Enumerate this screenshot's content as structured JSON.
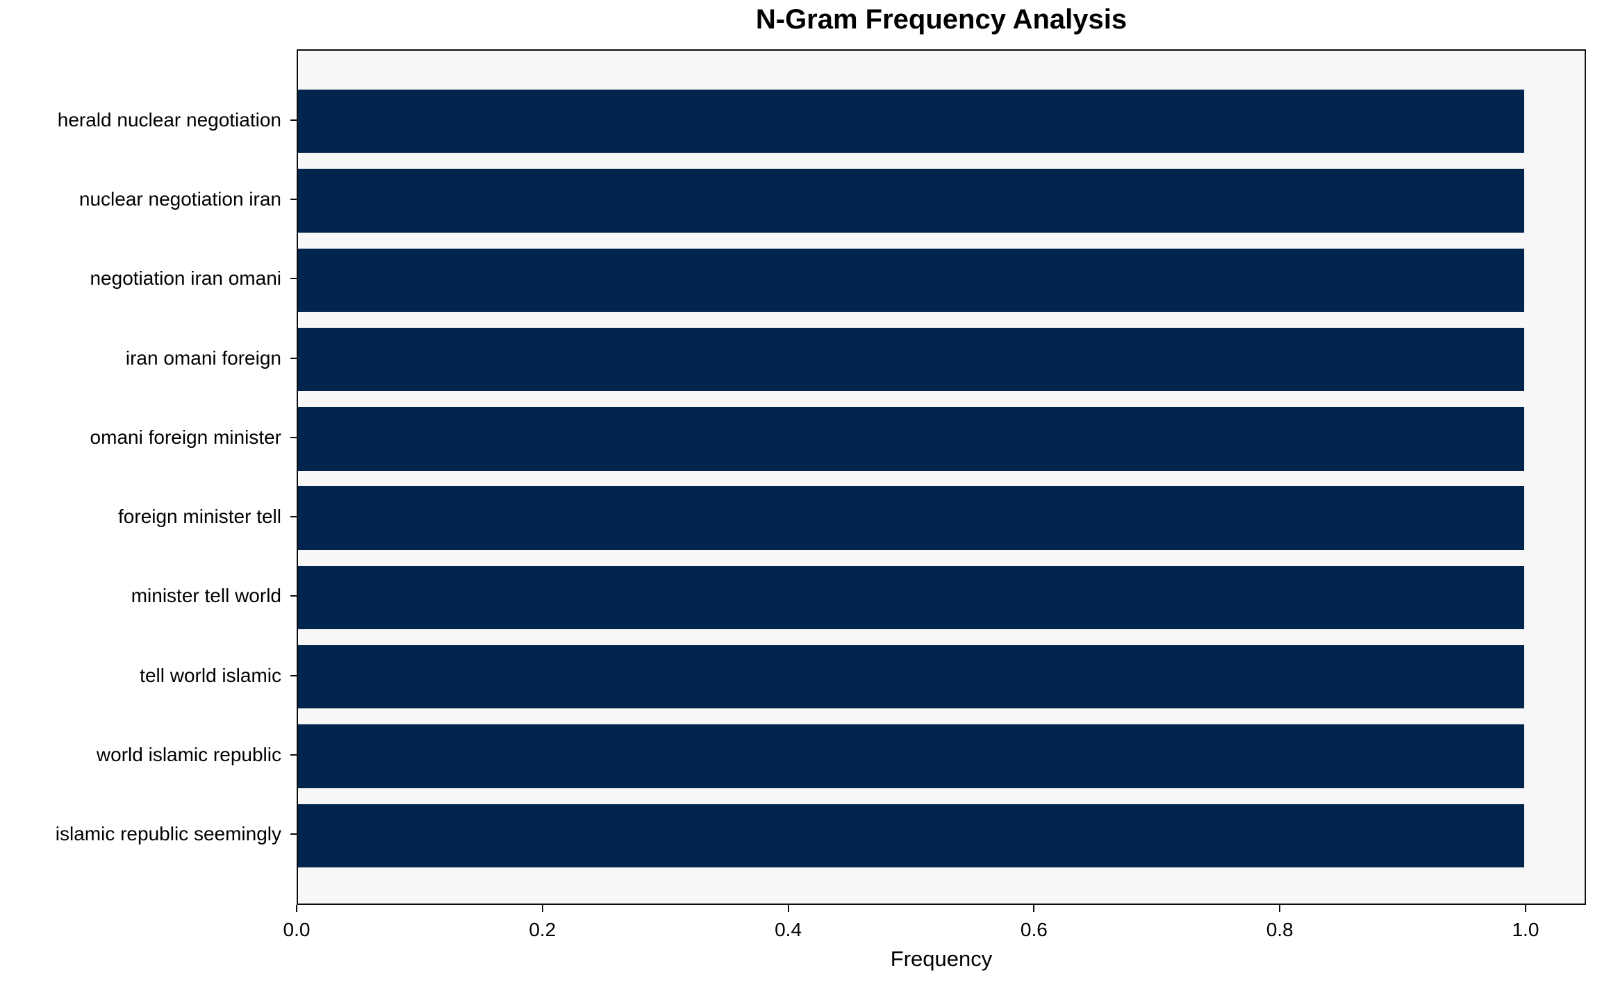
{
  "chart_data": {
    "type": "bar",
    "orientation": "horizontal",
    "title": "N-Gram Frequency Analysis",
    "xlabel": "Frequency",
    "ylabel": "",
    "categories": [
      "herald nuclear negotiation",
      "nuclear negotiation iran",
      "negotiation iran omani",
      "iran omani foreign",
      "omani foreign minister",
      "foreign minister tell",
      "minister tell world",
      "tell world islamic",
      "world islamic republic",
      "islamic republic seemingly"
    ],
    "values": [
      1.0,
      1.0,
      1.0,
      1.0,
      1.0,
      1.0,
      1.0,
      1.0,
      1.0,
      1.0
    ],
    "xlim": [
      0.0,
      1.0492
    ],
    "x_ticks": [
      0.0,
      0.2,
      0.4,
      0.6,
      0.8,
      1.0
    ],
    "x_tick_labels": [
      "0.0",
      "0.2",
      "0.4",
      "0.6",
      "0.8",
      "1.0"
    ],
    "bar_color": "#02254e",
    "plot_bg_color": "#f7f7f7",
    "spine_color": "#0e0e0e",
    "grid": false,
    "legend": null
  }
}
